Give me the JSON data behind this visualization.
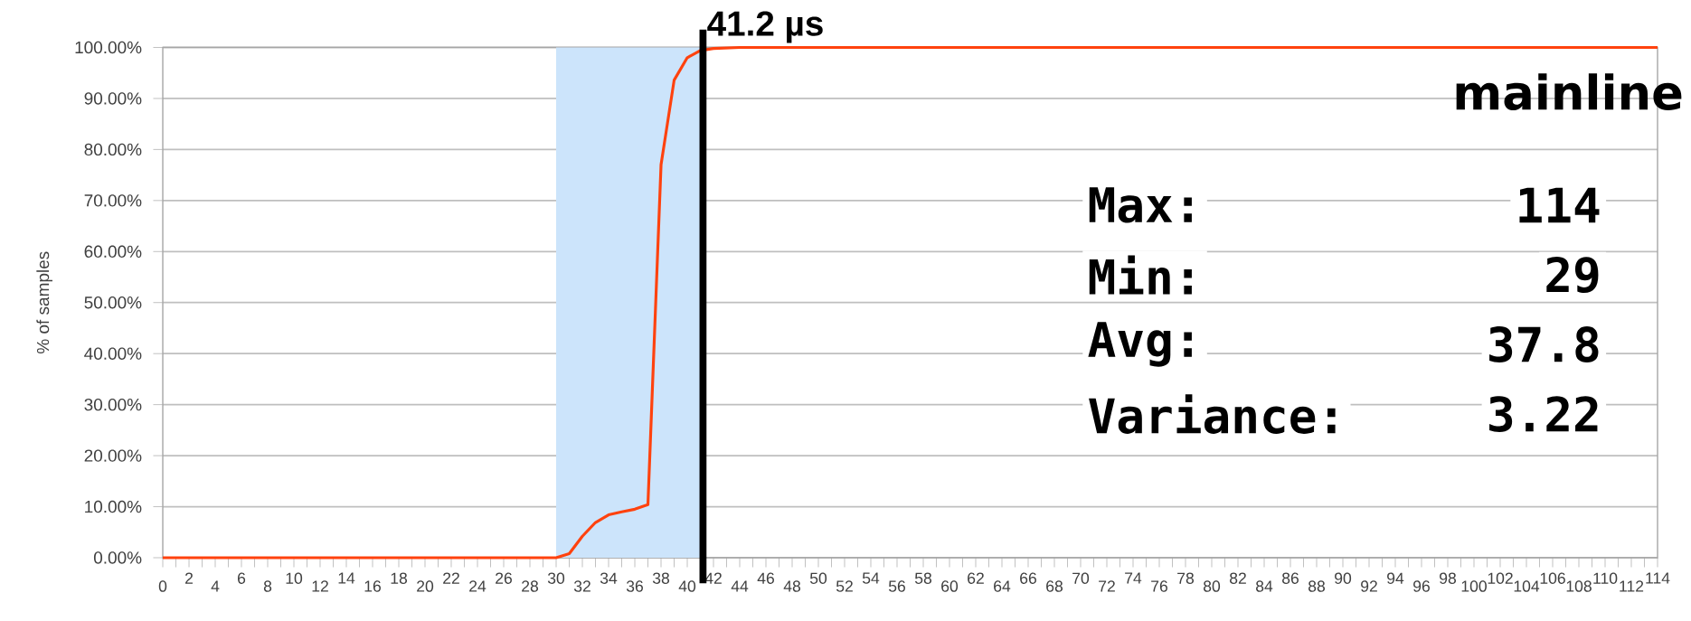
{
  "chart_data": {
    "type": "line",
    "title": "mainline",
    "ylabel": "% of samples",
    "series": [
      {
        "color": "#ff420e",
        "x": [
          0,
          30,
          31,
          32,
          33,
          34,
          35,
          36,
          37,
          38,
          39,
          40,
          41,
          42,
          44,
          114
        ],
        "values": [
          0,
          0,
          0.8,
          4.2,
          6.9,
          8.4,
          9.0,
          9.5,
          10.4,
          77.0,
          93.6,
          98.0,
          99.4,
          99.8,
          100,
          100
        ]
      }
    ],
    "xlim": [
      0,
      114
    ],
    "ylim": [
      0,
      100
    ],
    "xticks": [
      0,
      {
        "value": 1,
        "label": null
      },
      2,
      {
        "value": 3,
        "label": null
      },
      4,
      {
        "value": 5,
        "label": null
      },
      6,
      {
        "value": 7,
        "label": null
      },
      8,
      {
        "value": 9,
        "label": null
      },
      10,
      {
        "value": 11,
        "label": null
      },
      12,
      {
        "value": 13,
        "label": null
      },
      14,
      {
        "value": 15,
        "label": null
      },
      16,
      {
        "value": 17,
        "label": null
      },
      18,
      {
        "value": 19,
        "label": null
      },
      20,
      {
        "value": 21,
        "label": null
      },
      22,
      {
        "value": 23,
        "label": null
      },
      24,
      {
        "value": 25,
        "label": null
      },
      26,
      {
        "value": 27,
        "label": null
      },
      28,
      {
        "value": 29,
        "label": null
      },
      30,
      {
        "value": 31,
        "label": null
      },
      32,
      {
        "value": 33,
        "label": null
      },
      34,
      {
        "value": 35,
        "label": null
      },
      36,
      {
        "value": 37,
        "label": null
      },
      38,
      {
        "value": 39,
        "label": null
      },
      40,
      {
        "value": 41,
        "label": null
      },
      42,
      {
        "value": 43,
        "label": null
      },
      44,
      {
        "value": 45,
        "label": null
      },
      46,
      {
        "value": 47,
        "label": null
      },
      48,
      {
        "value": 49,
        "label": null
      },
      50,
      {
        "value": 51,
        "label": null
      },
      52,
      {
        "value": 53,
        "label": null
      },
      54,
      {
        "value": 55,
        "label": null
      },
      56,
      {
        "value": 57,
        "label": null
      },
      58,
      {
        "value": 59,
        "label": null
      },
      60,
      {
        "value": 61,
        "label": null
      },
      62,
      {
        "value": 63,
        "label": null
      },
      64,
      {
        "value": 65,
        "label": null
      },
      66,
      {
        "value": 67,
        "label": null
      },
      68,
      {
        "value": 69,
        "label": null
      },
      70,
      {
        "value": 71,
        "label": null
      },
      72,
      {
        "value": 73,
        "label": null
      },
      74,
      {
        "value": 75,
        "label": null
      },
      76,
      {
        "value": 77,
        "label": null
      },
      78,
      {
        "value": 79,
        "label": null
      },
      80,
      {
        "value": 81,
        "label": null
      },
      82,
      {
        "value": 83,
        "label": null
      },
      84,
      {
        "value": 85,
        "label": null
      },
      86,
      {
        "value": 87,
        "label": null
      },
      88,
      {
        "value": 89,
        "label": null
      },
      90,
      {
        "value": 91,
        "label": null
      },
      92,
      {
        "value": 93,
        "label": null
      },
      94,
      {
        "value": 95,
        "label": null
      },
      96,
      {
        "value": 97,
        "label": null
      },
      98,
      {
        "value": 99,
        "label": null
      },
      100,
      {
        "value": 101,
        "label": null
      },
      102,
      {
        "value": 103,
        "label": null
      },
      104,
      {
        "value": 105,
        "label": null
      },
      106,
      {
        "value": 107,
        "label": null
      },
      108,
      {
        "value": 109,
        "label": null
      },
      110,
      {
        "value": 111,
        "label": null
      },
      112,
      {
        "value": 113,
        "label": null
      },
      114
    ],
    "yticks": [
      {
        "value": 0,
        "label": "0.00%"
      },
      {
        "value": 10,
        "label": "10.00%"
      },
      {
        "value": 20,
        "label": "20.00%"
      },
      {
        "value": 30,
        "label": "30.00%"
      },
      {
        "value": 40,
        "label": "40.00%"
      },
      {
        "value": 50,
        "label": "50.00%"
      },
      {
        "value": 60,
        "label": "60.00%"
      },
      {
        "value": 70,
        "label": "70.00%"
      },
      {
        "value": 80,
        "label": "80.00%"
      },
      {
        "value": 90,
        "label": "90.00%"
      },
      {
        "value": 100,
        "label": "100.00%"
      }
    ],
    "grid": "y",
    "legend": false,
    "marker": "none",
    "line_style": "solid",
    "ref_lines": [
      {
        "axis": "x",
        "value": 41.2,
        "label": "41.2 µs",
        "color": "#000000"
      }
    ],
    "bands": [
      {
        "axis": "x",
        "from": 30,
        "to": 41.2,
        "color": "#cce4fb"
      }
    ],
    "annotations": [
      "Max:",
      "114",
      "Min:",
      "29",
      "Avg:",
      "37.8",
      "Variance:",
      "3.22"
    ]
  }
}
